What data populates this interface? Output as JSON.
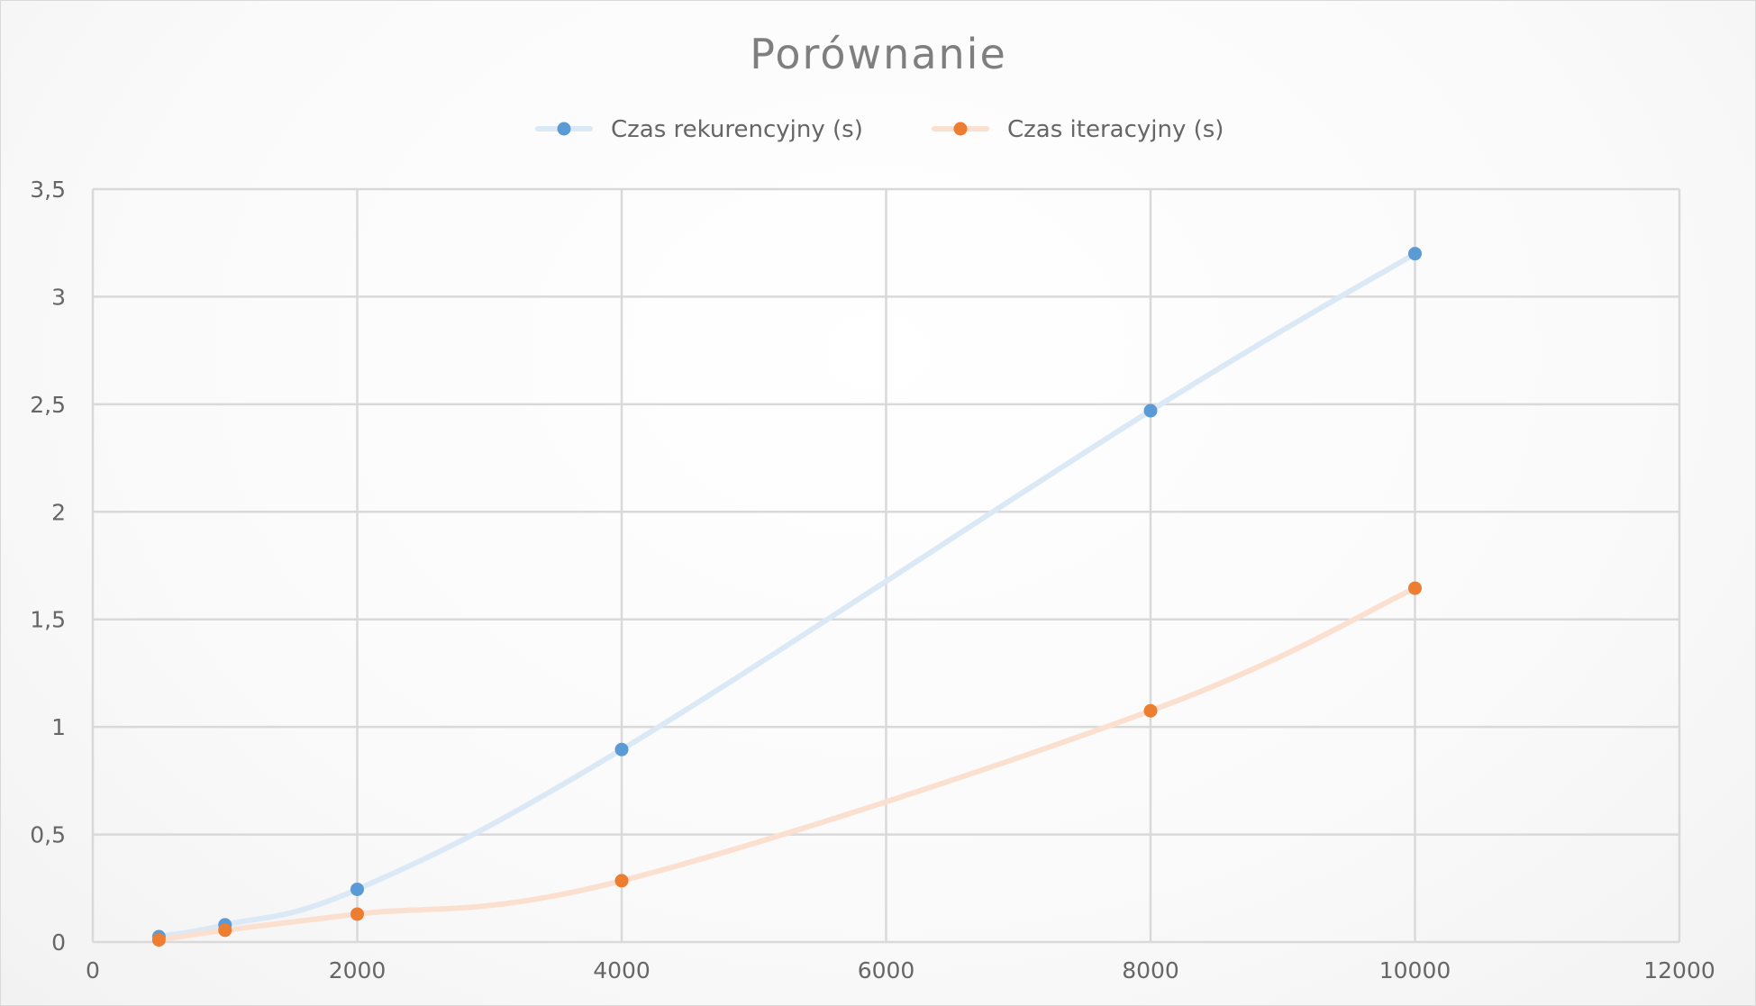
{
  "chart_data": {
    "type": "scatter",
    "title": "Porównanie",
    "xlabel": "",
    "ylabel": "",
    "xlim": [
      0,
      12000
    ],
    "ylim": [
      0,
      3.5
    ],
    "x_ticks": [
      0,
      2000,
      4000,
      6000,
      8000,
      10000,
      12000
    ],
    "x_tick_labels": [
      "0",
      "2000",
      "4000",
      "6000",
      "8000",
      "10000",
      "12000"
    ],
    "y_ticks": [
      0,
      0.5,
      1,
      1.5,
      2,
      2.5,
      3,
      3.5
    ],
    "y_tick_labels": [
      "0",
      "0,5",
      "1",
      "1,5",
      "2",
      "2,5",
      "3",
      "3,5"
    ],
    "grid": true,
    "legend_position": "top",
    "smooth_lines": true,
    "series": [
      {
        "name": "Czas rekurencyjny (s)",
        "marker_color": "#5b9bd5",
        "line_color": "#dbe8f6",
        "points": [
          {
            "x": 500,
            "y": 0.025
          },
          {
            "x": 1000,
            "y": 0.08
          },
          {
            "x": 2000,
            "y": 0.245
          },
          {
            "x": 4000,
            "y": 0.895
          },
          {
            "x": 8000,
            "y": 2.47
          },
          {
            "x": 10000,
            "y": 3.2
          }
        ]
      },
      {
        "name": "Czas iteracyjny (s)",
        "marker_color": "#ed7d31",
        "line_color": "#fbe0cf",
        "points": [
          {
            "x": 500,
            "y": 0.01
          },
          {
            "x": 1000,
            "y": 0.055
          },
          {
            "x": 2000,
            "y": 0.13
          },
          {
            "x": 4000,
            "y": 0.285
          },
          {
            "x": 8000,
            "y": 1.075
          },
          {
            "x": 10000,
            "y": 1.645
          }
        ]
      }
    ]
  }
}
